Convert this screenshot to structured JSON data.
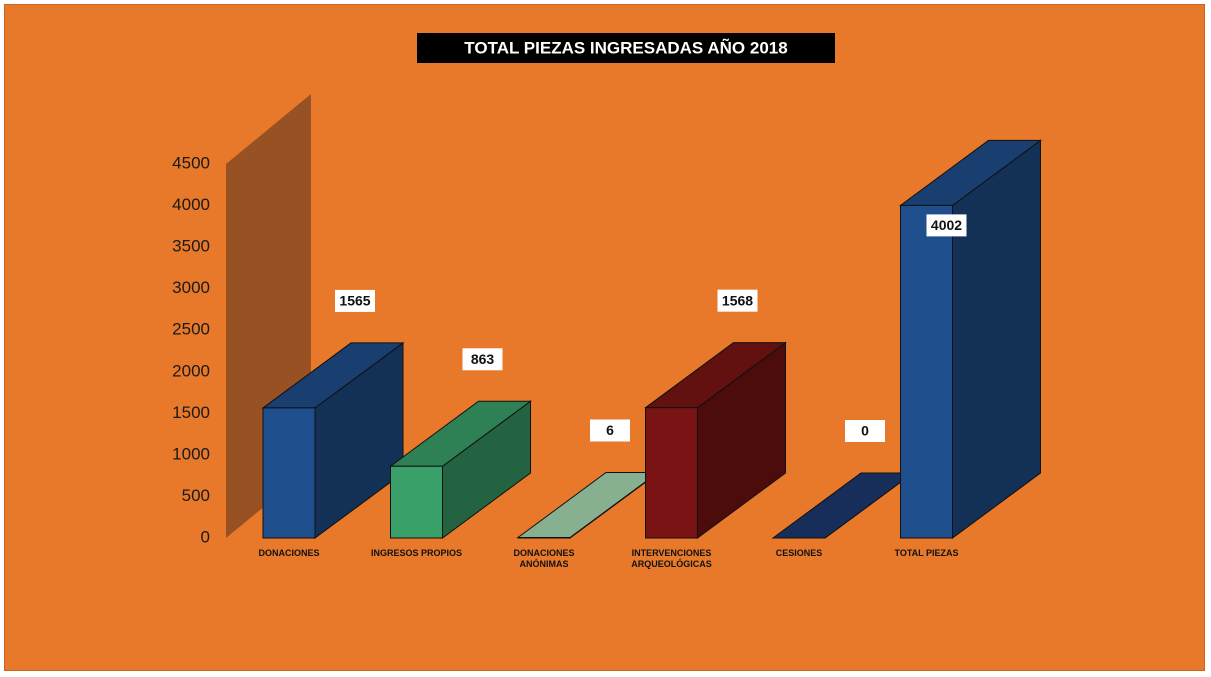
{
  "chart_data": {
    "type": "bar3d",
    "title": "TOTAL PIEZAS INGRESADAS AÑO 2018",
    "categories": [
      "DONACIONES",
      "INGRESOS PROPIOS",
      "DONACIONES ANÓNIMAS",
      "INTERVENCIONES ARQUEOLÓGICAS",
      "CESIONES",
      "TOTAL PIEZAS"
    ],
    "values": [
      1565,
      863,
      6,
      1568,
      0,
      4002
    ],
    "colors": [
      "#1f4e8c",
      "#3aa06a",
      "#a8dcb4",
      "#7a1414",
      "#1d3a70",
      "#1f4e8c"
    ],
    "ylim": [
      0,
      4500
    ],
    "yticks": [
      0,
      500,
      1000,
      1500,
      2000,
      2500,
      3000,
      3500,
      4000,
      4500
    ]
  }
}
